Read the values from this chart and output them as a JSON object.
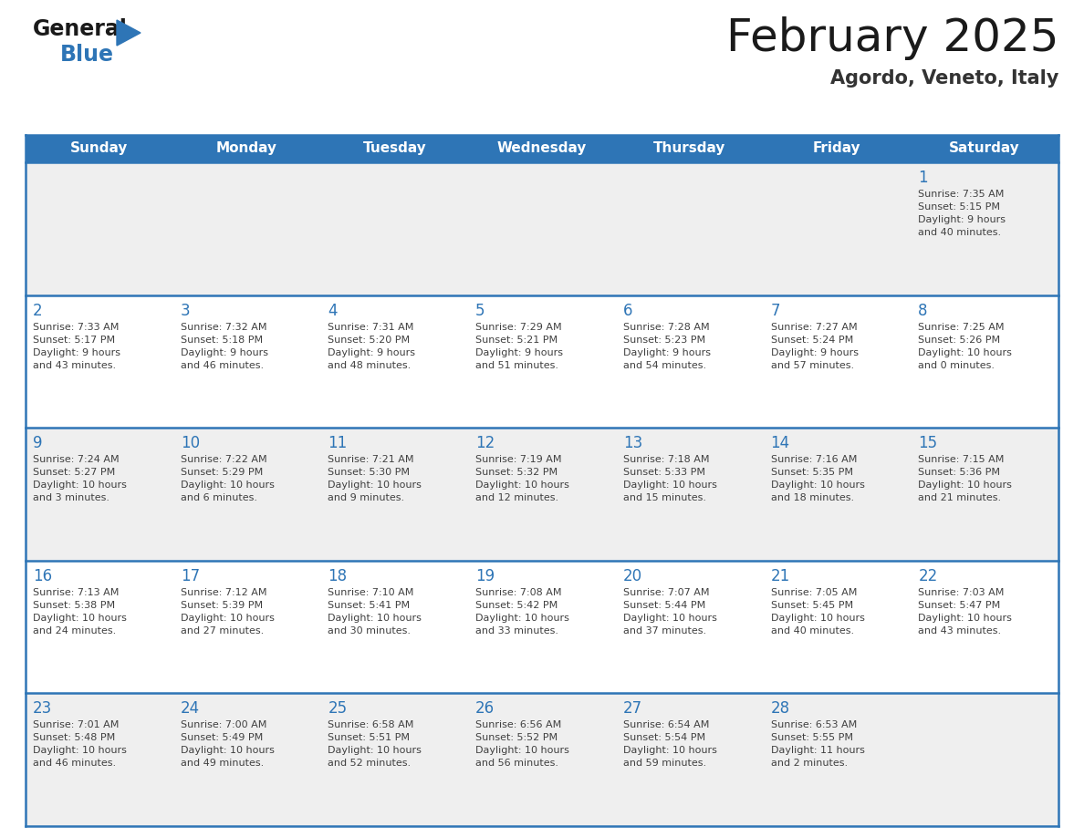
{
  "title": "February 2025",
  "subtitle": "Agordo, Veneto, Italy",
  "header_bg": "#2E75B6",
  "header_text": "#FFFFFF",
  "row_bg_light": "#EFEFEF",
  "row_bg_white": "#FFFFFF",
  "border_color": "#2E75B6",
  "day_number_color": "#2E75B6",
  "text_color": "#404040",
  "weekdays": [
    "Sunday",
    "Monday",
    "Tuesday",
    "Wednesday",
    "Thursday",
    "Friday",
    "Saturday"
  ],
  "title_color": "#1a1a1a",
  "subtitle_color": "#333333",
  "logo_general_color": "#1a1a1a",
  "logo_blue_color": "#2E75B6",
  "logo_triangle_color": "#2E75B6",
  "calendar": [
    [
      {
        "day": null,
        "info": null
      },
      {
        "day": null,
        "info": null
      },
      {
        "day": null,
        "info": null
      },
      {
        "day": null,
        "info": null
      },
      {
        "day": null,
        "info": null
      },
      {
        "day": null,
        "info": null
      },
      {
        "day": "1",
        "info": "Sunrise: 7:35 AM\nSunset: 5:15 PM\nDaylight: 9 hours\nand 40 minutes."
      }
    ],
    [
      {
        "day": "2",
        "info": "Sunrise: 7:33 AM\nSunset: 5:17 PM\nDaylight: 9 hours\nand 43 minutes."
      },
      {
        "day": "3",
        "info": "Sunrise: 7:32 AM\nSunset: 5:18 PM\nDaylight: 9 hours\nand 46 minutes."
      },
      {
        "day": "4",
        "info": "Sunrise: 7:31 AM\nSunset: 5:20 PM\nDaylight: 9 hours\nand 48 minutes."
      },
      {
        "day": "5",
        "info": "Sunrise: 7:29 AM\nSunset: 5:21 PM\nDaylight: 9 hours\nand 51 minutes."
      },
      {
        "day": "6",
        "info": "Sunrise: 7:28 AM\nSunset: 5:23 PM\nDaylight: 9 hours\nand 54 minutes."
      },
      {
        "day": "7",
        "info": "Sunrise: 7:27 AM\nSunset: 5:24 PM\nDaylight: 9 hours\nand 57 minutes."
      },
      {
        "day": "8",
        "info": "Sunrise: 7:25 AM\nSunset: 5:26 PM\nDaylight: 10 hours\nand 0 minutes."
      }
    ],
    [
      {
        "day": "9",
        "info": "Sunrise: 7:24 AM\nSunset: 5:27 PM\nDaylight: 10 hours\nand 3 minutes."
      },
      {
        "day": "10",
        "info": "Sunrise: 7:22 AM\nSunset: 5:29 PM\nDaylight: 10 hours\nand 6 minutes."
      },
      {
        "day": "11",
        "info": "Sunrise: 7:21 AM\nSunset: 5:30 PM\nDaylight: 10 hours\nand 9 minutes."
      },
      {
        "day": "12",
        "info": "Sunrise: 7:19 AM\nSunset: 5:32 PM\nDaylight: 10 hours\nand 12 minutes."
      },
      {
        "day": "13",
        "info": "Sunrise: 7:18 AM\nSunset: 5:33 PM\nDaylight: 10 hours\nand 15 minutes."
      },
      {
        "day": "14",
        "info": "Sunrise: 7:16 AM\nSunset: 5:35 PM\nDaylight: 10 hours\nand 18 minutes."
      },
      {
        "day": "15",
        "info": "Sunrise: 7:15 AM\nSunset: 5:36 PM\nDaylight: 10 hours\nand 21 minutes."
      }
    ],
    [
      {
        "day": "16",
        "info": "Sunrise: 7:13 AM\nSunset: 5:38 PM\nDaylight: 10 hours\nand 24 minutes."
      },
      {
        "day": "17",
        "info": "Sunrise: 7:12 AM\nSunset: 5:39 PM\nDaylight: 10 hours\nand 27 minutes."
      },
      {
        "day": "18",
        "info": "Sunrise: 7:10 AM\nSunset: 5:41 PM\nDaylight: 10 hours\nand 30 minutes."
      },
      {
        "day": "19",
        "info": "Sunrise: 7:08 AM\nSunset: 5:42 PM\nDaylight: 10 hours\nand 33 minutes."
      },
      {
        "day": "20",
        "info": "Sunrise: 7:07 AM\nSunset: 5:44 PM\nDaylight: 10 hours\nand 37 minutes."
      },
      {
        "day": "21",
        "info": "Sunrise: 7:05 AM\nSunset: 5:45 PM\nDaylight: 10 hours\nand 40 minutes."
      },
      {
        "day": "22",
        "info": "Sunrise: 7:03 AM\nSunset: 5:47 PM\nDaylight: 10 hours\nand 43 minutes."
      }
    ],
    [
      {
        "day": "23",
        "info": "Sunrise: 7:01 AM\nSunset: 5:48 PM\nDaylight: 10 hours\nand 46 minutes."
      },
      {
        "day": "24",
        "info": "Sunrise: 7:00 AM\nSunset: 5:49 PM\nDaylight: 10 hours\nand 49 minutes."
      },
      {
        "day": "25",
        "info": "Sunrise: 6:58 AM\nSunset: 5:51 PM\nDaylight: 10 hours\nand 52 minutes."
      },
      {
        "day": "26",
        "info": "Sunrise: 6:56 AM\nSunset: 5:52 PM\nDaylight: 10 hours\nand 56 minutes."
      },
      {
        "day": "27",
        "info": "Sunrise: 6:54 AM\nSunset: 5:54 PM\nDaylight: 10 hours\nand 59 minutes."
      },
      {
        "day": "28",
        "info": "Sunrise: 6:53 AM\nSunset: 5:55 PM\nDaylight: 11 hours\nand 2 minutes."
      },
      {
        "day": null,
        "info": null
      }
    ]
  ]
}
